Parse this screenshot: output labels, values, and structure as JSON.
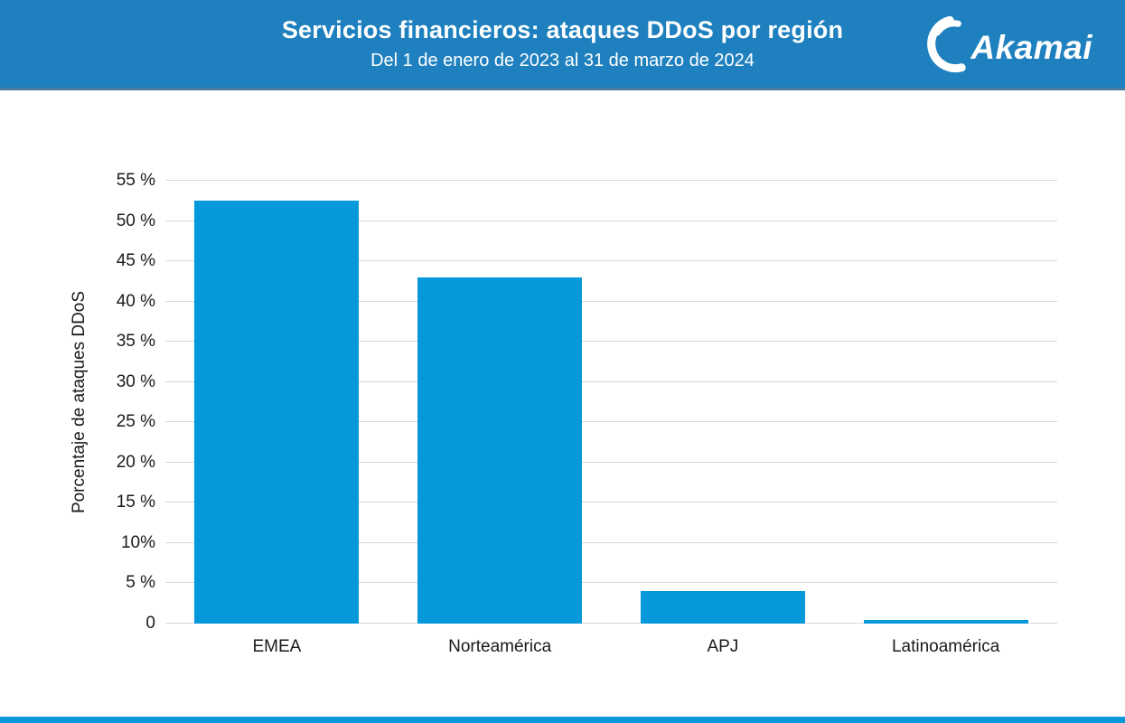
{
  "header": {
    "title": "Servicios financieros: ataques DDoS por región",
    "subtitle": "Del 1 de enero de 2023 al 31 de marzo de 2024",
    "logo_text": "Akamai",
    "background_color": "#1E80BE",
    "text_color": "#FFFFFF"
  },
  "chart_data": {
    "type": "bar",
    "title": "Servicios financieros: ataques DDoS por región",
    "subtitle": "Del 1 de enero de 2023 al 31 de marzo de 2024",
    "categories": [
      "EMEA",
      "Norteamérica",
      "APJ",
      "Latinoamérica"
    ],
    "values": [
      52.5,
      43,
      4,
      0.5
    ],
    "xlabel": "",
    "ylabel": "Porcentaje de ataques DDoS",
    "ylim": [
      0,
      55
    ],
    "yticks": [
      {
        "value": 0,
        "label": "0"
      },
      {
        "value": 5,
        "label": "5 %"
      },
      {
        "value": 10,
        "label": "10%"
      },
      {
        "value": 15,
        "label": "15 %"
      },
      {
        "value": 20,
        "label": "20 %"
      },
      {
        "value": 25,
        "label": "25 %"
      },
      {
        "value": 30,
        "label": "30 %"
      },
      {
        "value": 35,
        "label": "35 %"
      },
      {
        "value": 40,
        "label": "40 %"
      },
      {
        "value": 45,
        "label": "45 %"
      },
      {
        "value": 50,
        "label": "50 %"
      },
      {
        "value": 55,
        "label": "55 %"
      }
    ],
    "grid": true,
    "legend": false,
    "bar_color": "#0599DB",
    "gridline_color": "#D9D9D9",
    "text_color": "#1A1A1A"
  },
  "footer": {
    "bar_color": "#0599DB"
  }
}
